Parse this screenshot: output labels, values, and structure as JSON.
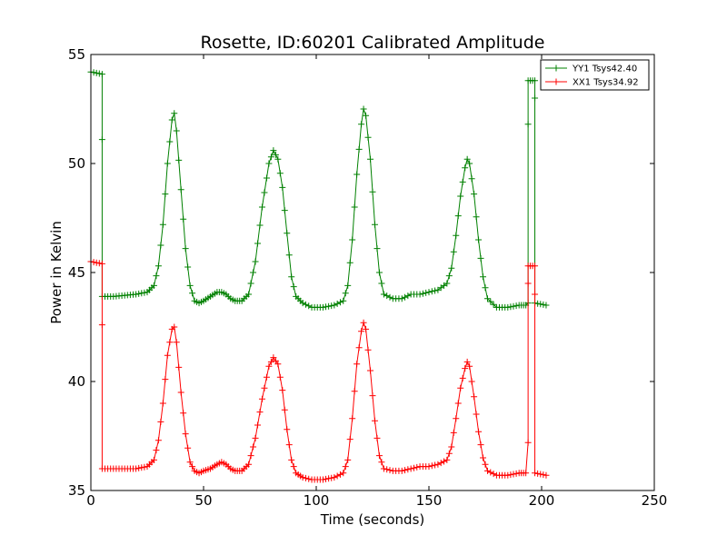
{
  "chart_data": {
    "type": "line",
    "title": "Rosette, ID:60201 Calibrated Amplitude",
    "xlabel": "Time (seconds)",
    "ylabel": "Power in Kelvin",
    "xlim": [
      0,
      250
    ],
    "ylim": [
      35,
      55
    ],
    "xticks": [
      "0",
      "50",
      "100",
      "150",
      "200",
      "250"
    ],
    "yticks": [
      "35",
      "40",
      "45",
      "50",
      "55"
    ],
    "grid": false,
    "legend_position": "top-right",
    "marker": "+",
    "series": [
      {
        "name": "YY1 Tsys42.40",
        "color": "#008000",
        "points": [
          [
            0,
            54.2
          ],
          [
            5,
            54.1
          ],
          [
            5,
            51.1
          ],
          [
            5,
            43.9
          ],
          [
            10,
            43.9
          ],
          [
            20,
            44.0
          ],
          [
            25,
            44.1
          ],
          [
            28,
            44.4
          ],
          [
            30,
            45.3
          ],
          [
            32,
            47.2
          ],
          [
            34,
            50.0
          ],
          [
            36,
            52.0
          ],
          [
            37,
            52.3
          ],
          [
            38,
            51.5
          ],
          [
            40,
            48.8
          ],
          [
            42,
            46.1
          ],
          [
            44,
            44.4
          ],
          [
            46,
            43.7
          ],
          [
            48,
            43.6
          ],
          [
            50,
            43.7
          ],
          [
            53,
            43.9
          ],
          [
            56,
            44.1
          ],
          [
            58,
            44.1
          ],
          [
            60,
            44.0
          ],
          [
            62,
            43.8
          ],
          [
            64,
            43.7
          ],
          [
            67,
            43.7
          ],
          [
            70,
            44.0
          ],
          [
            73,
            45.5
          ],
          [
            76,
            48.0
          ],
          [
            79,
            50.0
          ],
          [
            81,
            50.6
          ],
          [
            83,
            50.2
          ],
          [
            85,
            48.9
          ],
          [
            87,
            46.8
          ],
          [
            89,
            44.8
          ],
          [
            91,
            43.9
          ],
          [
            94,
            43.6
          ],
          [
            98,
            43.4
          ],
          [
            103,
            43.4
          ],
          [
            108,
            43.5
          ],
          [
            112,
            43.7
          ],
          [
            114,
            44.4
          ],
          [
            116,
            46.5
          ],
          [
            118,
            49.5
          ],
          [
            120,
            51.8
          ],
          [
            121,
            52.5
          ],
          [
            122,
            52.2
          ],
          [
            124,
            50.2
          ],
          [
            126,
            47.2
          ],
          [
            128,
            45.0
          ],
          [
            130,
            44.0
          ],
          [
            134,
            43.8
          ],
          [
            138,
            43.8
          ],
          [
            142,
            44.0
          ],
          [
            146,
            44.0
          ],
          [
            150,
            44.1
          ],
          [
            154,
            44.2
          ],
          [
            158,
            44.5
          ],
          [
            160,
            45.2
          ],
          [
            162,
            46.7
          ],
          [
            164,
            48.5
          ],
          [
            166,
            49.8
          ],
          [
            167,
            50.2
          ],
          [
            168,
            50.0
          ],
          [
            170,
            48.6
          ],
          [
            172,
            46.5
          ],
          [
            174,
            44.8
          ],
          [
            176,
            43.8
          ],
          [
            180,
            43.4
          ],
          [
            185,
            43.4
          ],
          [
            190,
            43.5
          ],
          [
            193,
            43.5
          ],
          [
            194,
            43.6
          ],
          [
            194,
            51.8
          ],
          [
            194,
            53.8
          ],
          [
            197,
            53.8
          ],
          [
            197,
            53.0
          ],
          [
            197,
            43.6
          ],
          [
            202,
            43.5
          ]
        ]
      },
      {
        "name": "XX1 Tsys34.92",
        "color": "#ff0000",
        "points": [
          [
            0,
            45.5
          ],
          [
            5,
            45.4
          ],
          [
            5,
            42.6
          ],
          [
            5,
            36.0
          ],
          [
            10,
            36.0
          ],
          [
            20,
            36.0
          ],
          [
            25,
            36.1
          ],
          [
            28,
            36.4
          ],
          [
            30,
            37.3
          ],
          [
            32,
            39.0
          ],
          [
            34,
            41.2
          ],
          [
            36,
            42.4
          ],
          [
            37,
            42.5
          ],
          [
            38,
            41.8
          ],
          [
            40,
            39.5
          ],
          [
            42,
            37.6
          ],
          [
            44,
            36.3
          ],
          [
            46,
            35.9
          ],
          [
            48,
            35.8
          ],
          [
            50,
            35.9
          ],
          [
            53,
            36.0
          ],
          [
            56,
            36.2
          ],
          [
            58,
            36.3
          ],
          [
            60,
            36.2
          ],
          [
            62,
            36.0
          ],
          [
            64,
            35.9
          ],
          [
            67,
            35.9
          ],
          [
            70,
            36.2
          ],
          [
            73,
            37.4
          ],
          [
            76,
            39.2
          ],
          [
            79,
            40.7
          ],
          [
            81,
            41.1
          ],
          [
            83,
            40.8
          ],
          [
            85,
            39.6
          ],
          [
            87,
            37.8
          ],
          [
            89,
            36.4
          ],
          [
            91,
            35.8
          ],
          [
            94,
            35.6
          ],
          [
            98,
            35.5
          ],
          [
            103,
            35.5
          ],
          [
            108,
            35.6
          ],
          [
            112,
            35.8
          ],
          [
            114,
            36.4
          ],
          [
            116,
            38.3
          ],
          [
            118,
            40.8
          ],
          [
            120,
            42.3
          ],
          [
            121,
            42.7
          ],
          [
            122,
            42.4
          ],
          [
            124,
            40.5
          ],
          [
            126,
            38.2
          ],
          [
            128,
            36.6
          ],
          [
            130,
            36.0
          ],
          [
            134,
            35.9
          ],
          [
            138,
            35.9
          ],
          [
            142,
            36.0
          ],
          [
            146,
            36.1
          ],
          [
            150,
            36.1
          ],
          [
            154,
            36.2
          ],
          [
            158,
            36.4
          ],
          [
            160,
            37.0
          ],
          [
            162,
            38.3
          ],
          [
            164,
            39.7
          ],
          [
            166,
            40.6
          ],
          [
            167,
            40.9
          ],
          [
            168,
            40.7
          ],
          [
            170,
            39.3
          ],
          [
            172,
            37.7
          ],
          [
            174,
            36.5
          ],
          [
            176,
            35.9
          ],
          [
            180,
            35.7
          ],
          [
            185,
            35.7
          ],
          [
            190,
            35.8
          ],
          [
            193,
            35.8
          ],
          [
            194,
            37.2
          ],
          [
            194,
            44.5
          ],
          [
            194,
            45.3
          ],
          [
            197,
            45.3
          ],
          [
            197,
            44.0
          ],
          [
            197,
            35.8
          ],
          [
            202,
            35.7
          ]
        ]
      }
    ]
  }
}
